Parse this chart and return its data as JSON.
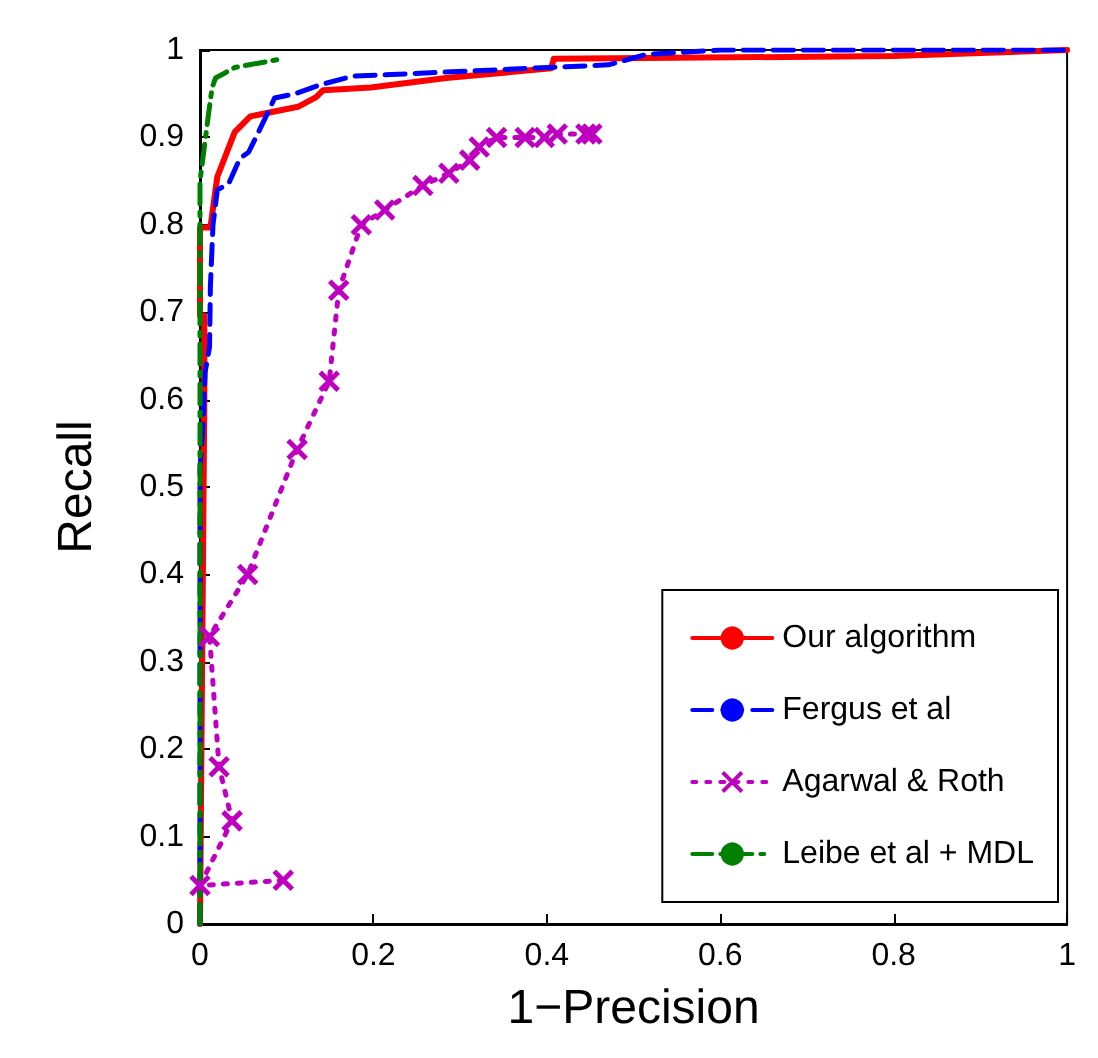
{
  "chart_data": {
    "type": "line",
    "xlabel": "1−Precision",
    "ylabel": "Recall",
    "xlim": [
      0,
      1
    ],
    "ylim": [
      0,
      1
    ],
    "xticks": [
      0,
      0.2,
      0.4,
      0.6,
      0.8,
      1
    ],
    "yticks": [
      0,
      0.1,
      0.2,
      0.3,
      0.4,
      0.5,
      0.6,
      0.7,
      0.8,
      0.9,
      1
    ],
    "grid": false,
    "legend": "bottom right",
    "series": [
      {
        "name": "Our algorithm",
        "color": "#ff0000",
        "line_style": "solid",
        "marker": "none",
        "x": [
          0,
          0.005,
          0.005,
          0,
          0,
          0.012,
          0.02,
          0.04,
          0.058,
          0.113,
          0.134,
          0.142,
          0.197,
          0.284,
          0.405,
          0.408,
          0.8,
          1
        ],
        "values": [
          0,
          0.6,
          0.696,
          0.696,
          0.797,
          0.797,
          0.855,
          0.906,
          0.924,
          0.935,
          0.946,
          0.954,
          0.957,
          0.968,
          0.979,
          0.99,
          0.993,
          1
        ]
      },
      {
        "name": "Fergus et al",
        "color": "#0000ff",
        "line_style": "dashed",
        "marker": "none",
        "x": [
          0,
          0,
          0.003,
          0.006,
          0.011,
          0.012,
          0.015,
          0.02,
          0.033,
          0.046,
          0.056,
          0.066,
          0.079,
          0.086,
          0.11,
          0.138,
          0.176,
          0.471,
          0.515,
          0.6,
          1
        ],
        "values": [
          0,
          0.52,
          0.565,
          0.632,
          0.66,
          0.73,
          0.8,
          0.84,
          0.847,
          0.876,
          0.883,
          0.903,
          0.93,
          0.945,
          0.95,
          0.96,
          0.97,
          0.983,
          0.995,
          1,
          1
        ]
      },
      {
        "name": "Agarwal & Roth",
        "color": "#c000c0",
        "line_style": "dotted",
        "marker": "cross",
        "x": [
          0.096,
          0,
          0.037,
          0.022,
          0.011,
          0.055,
          0.112,
          0.149,
          0.16,
          0.186,
          0.213,
          0.257,
          0.287,
          0.311,
          0.322,
          0.342,
          0.375,
          0.397,
          0.412,
          0.445,
          0.452
        ],
        "values": [
          0.05,
          0.044,
          0.118,
          0.18,
          0.329,
          0.4,
          0.543,
          0.621,
          0.725,
          0.8,
          0.817,
          0.845,
          0.859,
          0.874,
          0.889,
          0.9,
          0.9,
          0.9,
          0.904,
          0.904,
          0.904
        ]
      },
      {
        "name": "Leibe et al + MDL",
        "color": "#008000",
        "line_style": "dashdot",
        "marker": "none",
        "x": [
          0,
          0,
          0.01,
          0.014,
          0.018,
          0.031,
          0.04,
          0.095
        ],
        "values": [
          0,
          0.85,
          0.928,
          0.957,
          0.968,
          0.975,
          0.98,
          0.99
        ]
      }
    ]
  }
}
